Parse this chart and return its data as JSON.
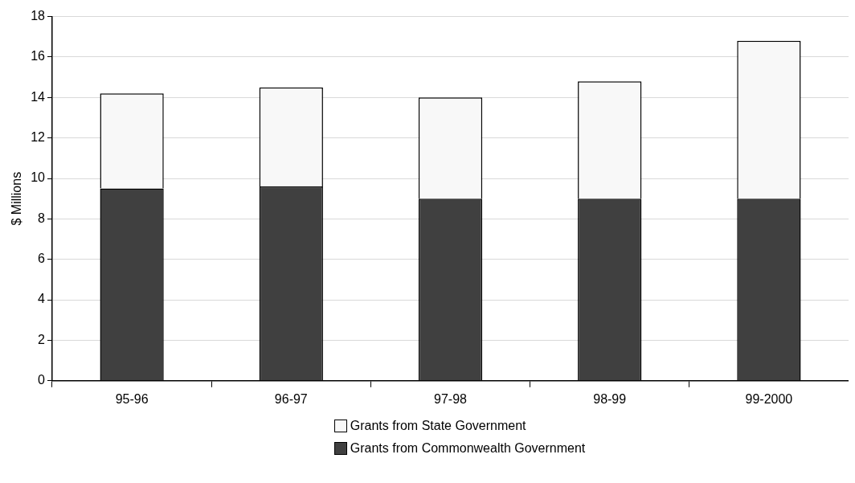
{
  "chart_data": {
    "type": "bar",
    "stacked": true,
    "ylabel": "$ Millions",
    "categories": [
      "95-96",
      "96-97",
      "97-98",
      "98-99",
      "99-2000"
    ],
    "series": [
      {
        "name": "Grants from Commonwealth Government",
        "color": "#404040",
        "values": [
          9.5,
          9.6,
          9.0,
          9.0,
          9.0
        ]
      },
      {
        "name": "Grants from State Government",
        "color": "#f8f8f8",
        "values": [
          4.7,
          4.9,
          5.0,
          5.8,
          7.8
        ]
      }
    ],
    "ylim": [
      0,
      18
    ],
    "yticks": [
      0,
      2,
      4,
      6,
      8,
      10,
      12,
      14,
      16,
      18
    ],
    "grid": "y",
    "legend": "bottom"
  }
}
